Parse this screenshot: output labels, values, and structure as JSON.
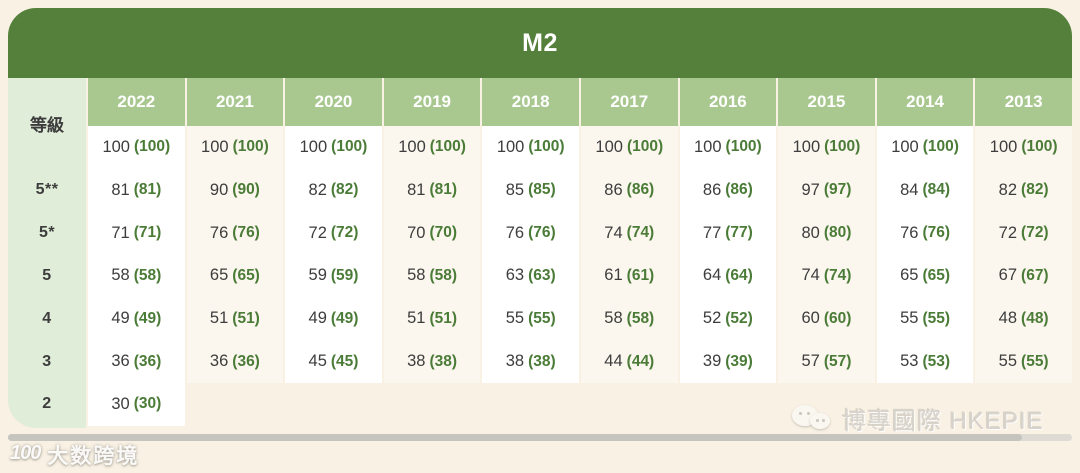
{
  "title": "M2",
  "chart_data": {
    "type": "table",
    "title": "M2",
    "corner_label": "等級",
    "columns": [
      "2022",
      "2021",
      "2020",
      "2019",
      "2018",
      "2017",
      "2016",
      "2015",
      "2014",
      "2013"
    ],
    "rows": [
      {
        "grade": "",
        "values": [
          100,
          100,
          100,
          100,
          100,
          100,
          100,
          100,
          100,
          100
        ]
      },
      {
        "grade": "5**",
        "values": [
          81,
          90,
          82,
          81,
          85,
          86,
          86,
          97,
          84,
          82
        ]
      },
      {
        "grade": "5*",
        "values": [
          71,
          76,
          72,
          70,
          76,
          74,
          77,
          80,
          76,
          72
        ]
      },
      {
        "grade": "5",
        "values": [
          58,
          65,
          59,
          58,
          63,
          61,
          64,
          74,
          65,
          67
        ]
      },
      {
        "grade": "4",
        "values": [
          49,
          51,
          49,
          51,
          55,
          58,
          52,
          60,
          55,
          48
        ]
      },
      {
        "grade": "3",
        "values": [
          36,
          36,
          45,
          38,
          38,
          44,
          39,
          57,
          53,
          55
        ]
      },
      {
        "grade": "2",
        "values": [
          30,
          null,
          null,
          null,
          null,
          null,
          null,
          null,
          null,
          null
        ]
      }
    ],
    "cell_format": "score (score)"
  },
  "watermarks": {
    "left_logo": "100",
    "bottom_left": "大数跨境",
    "bottom_right": "博專國際 HKEPIE"
  },
  "colors": {
    "header_green": "#55803c",
    "band_green": "#a9c88f",
    "grade_col_green": "#e0edd8",
    "value_green": "#4a7b37",
    "text_dark": "#3d3d3d",
    "page_bg": "#f8f1e4",
    "col_white": "#ffffff",
    "col_cream": "#fcf7ee",
    "scrollbar_thumb": "#c6c4bf",
    "scrollbar_track": "#dedbd5"
  }
}
